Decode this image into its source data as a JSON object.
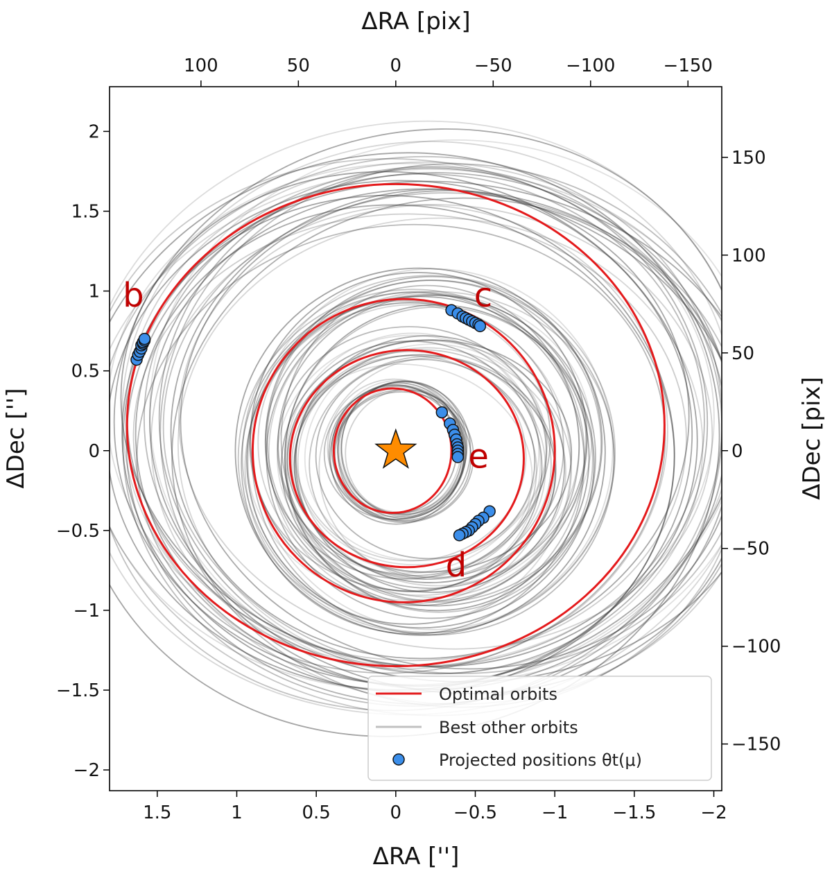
{
  "chart_data": {
    "type": "scatter",
    "xlabel_bottom": "ΔRA ['']",
    "xlabel_top": "ΔRA [pix]",
    "ylabel_left": "ΔDec ['']",
    "ylabel_right": "ΔDec [pix]",
    "xlim": [
      1.8,
      -2.05
    ],
    "ylim": [
      -2.13,
      2.28
    ],
    "x_ticks": [
      {
        "v": 1.5,
        "t": "1.5"
      },
      {
        "v": 1,
        "t": "1"
      },
      {
        "v": 0.5,
        "t": "0.5"
      },
      {
        "v": 0,
        "t": "0"
      },
      {
        "v": -0.5,
        "t": "−0.5"
      },
      {
        "v": -1,
        "t": "−1"
      },
      {
        "v": -1.5,
        "t": "−1.5"
      },
      {
        "v": -2,
        "t": "−2"
      }
    ],
    "y_ticks": [
      {
        "v": 2,
        "t": "2"
      },
      {
        "v": 1.5,
        "t": "1.5"
      },
      {
        "v": 1,
        "t": "1"
      },
      {
        "v": 0.5,
        "t": "0.5"
      },
      {
        "v": 0,
        "t": "0"
      },
      {
        "v": -0.5,
        "t": "−0.5"
      },
      {
        "v": -1,
        "t": "−1"
      },
      {
        "v": -1.5,
        "t": "−1.5"
      },
      {
        "v": -2,
        "t": "−2"
      }
    ],
    "pix_scale": 0.01225,
    "top_ticks": [
      {
        "v": 100,
        "t": "100"
      },
      {
        "v": 50,
        "t": "50"
      },
      {
        "v": 0,
        "t": "0"
      },
      {
        "v": -50,
        "t": "−50"
      },
      {
        "v": -100,
        "t": "−100"
      },
      {
        "v": -150,
        "t": "−150"
      }
    ],
    "right_ticks": [
      {
        "v": 150,
        "t": "150"
      },
      {
        "v": 100,
        "t": "100"
      },
      {
        "v": 50,
        "t": "50"
      },
      {
        "v": 0,
        "t": "0"
      },
      {
        "v": -50,
        "t": "−50"
      },
      {
        "v": -100,
        "t": "−100"
      },
      {
        "v": -150,
        "t": "−150"
      }
    ],
    "star": {
      "x": 0,
      "y": 0,
      "color": "#ff8c00"
    },
    "optimal_orbits": [
      {
        "planet": "b",
        "cx": 0.0,
        "cy": 0.16,
        "rx": 1.69,
        "ry": 1.51
      },
      {
        "planet": "c",
        "cx": -0.05,
        "cy": 0.0,
        "rx": 0.95,
        "ry": 0.95
      },
      {
        "planet": "d",
        "cx": -0.07,
        "cy": -0.05,
        "rx": 0.735,
        "ry": 0.68
      },
      {
        "planet": "e",
        "cx": 0.02,
        "cy": 0.0,
        "rx": 0.37,
        "ry": 0.39
      }
    ],
    "planet_labels": [
      {
        "text": "b",
        "x": 1.65,
        "y": 0.96
      },
      {
        "text": "c",
        "x": -0.55,
        "y": 0.96
      },
      {
        "text": "e",
        "x": -0.52,
        "y": -0.05
      },
      {
        "text": "d",
        "x": -0.38,
        "y": -0.73
      }
    ],
    "projected_positions": [
      {
        "planet": "b",
        "x": [
          1.63,
          1.62,
          1.61,
          1.6,
          1.6,
          1.59,
          1.59,
          1.58,
          1.58
        ],
        "y": [
          0.57,
          0.6,
          0.62,
          0.64,
          0.66,
          0.67,
          0.68,
          0.69,
          0.7
        ]
      },
      {
        "planet": "c",
        "x": [
          -0.35,
          -0.39,
          -0.42,
          -0.44,
          -0.46,
          -0.48,
          -0.5,
          -0.52,
          -0.53
        ],
        "y": [
          0.88,
          0.86,
          0.84,
          0.83,
          0.82,
          0.81,
          0.8,
          0.79,
          0.78
        ]
      },
      {
        "planet": "e",
        "x": [
          -0.29,
          -0.34,
          -0.36,
          -0.37,
          -0.38,
          -0.385,
          -0.39,
          -0.39,
          -0.39,
          -0.39
        ],
        "y": [
          0.24,
          0.17,
          0.13,
          0.1,
          0.07,
          0.04,
          0.02,
          0.0,
          -0.02,
          -0.04
        ]
      },
      {
        "planet": "d",
        "x": [
          -0.59,
          -0.55,
          -0.52,
          -0.5,
          -0.48,
          -0.46,
          -0.44,
          -0.42,
          -0.4
        ],
        "y": [
          -0.38,
          -0.42,
          -0.44,
          -0.46,
          -0.48,
          -0.5,
          -0.51,
          -0.52,
          -0.53
        ]
      }
    ],
    "legend": {
      "placement": "lower-right",
      "entries": [
        {
          "label": "Optimal orbits",
          "kind": "line",
          "color": "#e41a1c"
        },
        {
          "label": "Best other orbits",
          "kind": "line",
          "color": "#c0c0c0"
        },
        {
          "label": "Projected positions θt(μ)",
          "kind": "marker",
          "color": "#3b8eea"
        }
      ]
    },
    "colors": {
      "optimal_orbit": "#e41a1c",
      "other_orbit": "#333333",
      "planet_label": "#c00000",
      "marker_fill": "#3b8eea",
      "marker_edge": "#111111"
    }
  }
}
